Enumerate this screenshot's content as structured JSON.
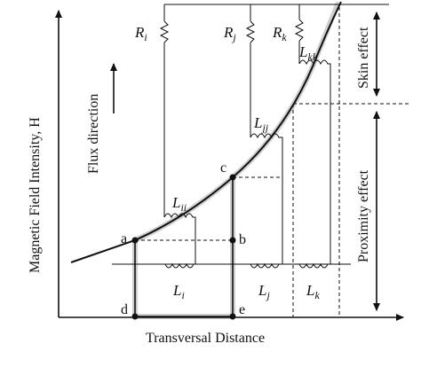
{
  "axes": {
    "y_label": "Magnetic Field Intensity, H",
    "x_label": "Transversal Distance"
  },
  "annotations": {
    "flux_direction": "Flux direction",
    "skin_effect": "Skin effect",
    "proximity_effect": "Proximity effect"
  },
  "resistors": [
    {
      "main": "R",
      "sub": "i"
    },
    {
      "main": "R",
      "sub": "j"
    },
    {
      "main": "R",
      "sub": "k"
    }
  ],
  "curve_inductors": [
    {
      "main": "L",
      "sub": "ii"
    },
    {
      "main": "L",
      "sub": "jj"
    },
    {
      "main": "L",
      "sub": "kk"
    }
  ],
  "bottom_inductors": [
    {
      "main": "L",
      "sub": "i"
    },
    {
      "main": "L",
      "sub": "j"
    },
    {
      "main": "L",
      "sub": "k"
    }
  ],
  "points": [
    "a",
    "b",
    "c",
    "d",
    "e"
  ]
}
